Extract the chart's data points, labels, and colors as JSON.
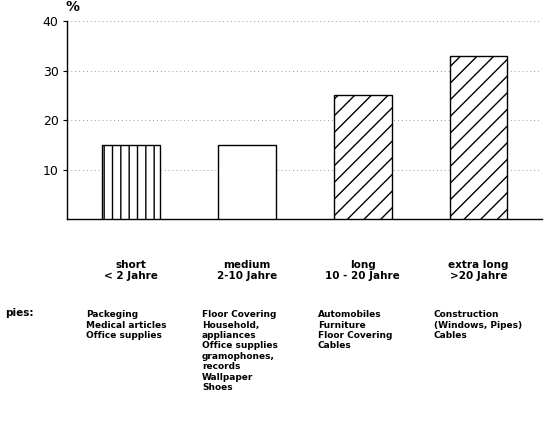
{
  "categories": [
    "short\n< 2 Jahre",
    "medium\n2-10 Jahre",
    "long\n10 - 20 Jahre",
    "extra long\n>20 Jahre"
  ],
  "values": [
    15,
    15,
    25,
    33
  ],
  "hatches": [
    "||",
    "==",
    "//",
    "//"
  ],
  "bar_color": "#ffffff",
  "bar_edge_color": "#000000",
  "ylabel": "%",
  "ylim": [
    0,
    40
  ],
  "yticks": [
    10,
    20,
    30,
    40
  ],
  "grid_color": "#999999",
  "background_color": "#ffffff",
  "bar_width": 0.5,
  "examples_label": "pies:",
  "cat_labels": [
    "short\n< 2 Jahre",
    "medium\n2-10 Jahre",
    "long\n10 - 20 Jahre",
    "extra long\n>20 Jahre"
  ],
  "examples": [
    "Packeging\nMedical articles\nOffice supplies",
    "Floor Covering\nHousehold,\nappliances\nOffice supplies\ngramophones,\nrecords\nWallpaper\nShoes",
    "Automobiles\nFurniture\nFloor Covering\nCables",
    "Construction\n(Windows, Pipes)\nCables"
  ]
}
